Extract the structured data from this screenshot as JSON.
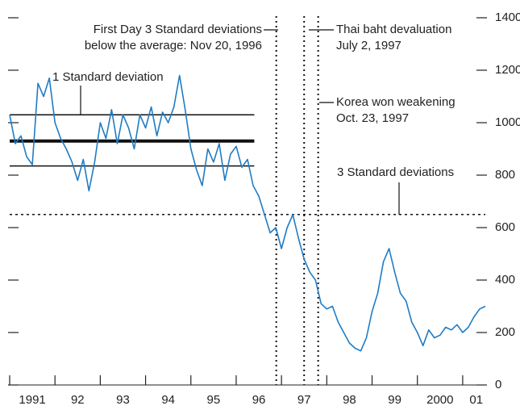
{
  "chart_data": {
    "type": "line",
    "color": "#1f7cc4",
    "xlim": [
      1991,
      2001.5
    ],
    "ylim": [
      0,
      1400
    ],
    "yticks": [
      0,
      200,
      400,
      600,
      800,
      1000,
      1200,
      1400
    ],
    "xtick_marks": [
      1991,
      1992,
      1993,
      1994,
      1995,
      1996,
      1997,
      1998,
      1999,
      2000,
      2001
    ],
    "xticks": [
      {
        "value": 1991.5,
        "label": "1991"
      },
      {
        "value": 1992.5,
        "label": "92"
      },
      {
        "value": 1993.5,
        "label": "93"
      },
      {
        "value": 1994.5,
        "label": "94"
      },
      {
        "value": 1995.5,
        "label": "95"
      },
      {
        "value": 1996.5,
        "label": "96"
      },
      {
        "value": 1997.5,
        "label": "97"
      },
      {
        "value": 1998.5,
        "label": "98"
      },
      {
        "value": 1999.5,
        "label": "99"
      },
      {
        "value": 2000.5,
        "label": "2000"
      },
      {
        "value": 2001.3,
        "label": "01"
      }
    ],
    "series": [
      {
        "x": [
          1991,
          1991.125,
          1991.25,
          1991.375,
          1991.5,
          1991.625,
          1991.75,
          1991.875,
          1992,
          1992.125,
          1992.25,
          1992.375,
          1992.5,
          1992.625,
          1992.75,
          1992.875,
          1993,
          1993.125,
          1993.25,
          1993.375,
          1993.5,
          1993.625,
          1993.75,
          1993.875,
          1994,
          1994.125,
          1994.25,
          1994.375,
          1994.5,
          1994.625,
          1994.75,
          1994.875,
          1995,
          1995.125,
          1995.25,
          1995.375,
          1995.5,
          1995.625,
          1995.75,
          1995.875,
          1996,
          1996.125,
          1996.25,
          1996.375,
          1996.5,
          1996.625,
          1996.75,
          1996.875,
          1997,
          1997.125,
          1997.25,
          1997.375,
          1997.5,
          1997.625,
          1997.75,
          1997.875,
          1998,
          1998.125,
          1998.25,
          1998.375,
          1998.5,
          1998.625,
          1998.75,
          1998.875,
          1999,
          1999.125,
          1999.25,
          1999.375,
          1999.5,
          1999.625,
          1999.75,
          1999.875,
          2000,
          2000.125,
          2000.25,
          2000.375,
          2000.5,
          2000.625,
          2000.75,
          2000.875,
          2001,
          2001.125,
          2001.25,
          2001.375,
          2001.5
        ],
        "values": [
          1030,
          920,
          950,
          870,
          840,
          1150,
          1100,
          1170,
          1000,
          940,
          900,
          850,
          780,
          860,
          740,
          850,
          1000,
          940,
          1050,
          920,
          1030,
          980,
          900,
          1030,
          980,
          1060,
          950,
          1040,
          1000,
          1060,
          1180,
          1050,
          900,
          820,
          760,
          900,
          850,
          920,
          780,
          880,
          910,
          830,
          860,
          760,
          720,
          650,
          580,
          600,
          520,
          600,
          650,
          560,
          480,
          430,
          400,
          310,
          290,
          300,
          240,
          200,
          160,
          140,
          130,
          180,
          280,
          350,
          470,
          520,
          430,
          350,
          320,
          240,
          200,
          150,
          210,
          180,
          190,
          220,
          210,
          230,
          200,
          220,
          260,
          290,
          300
        ]
      }
    ],
    "reference_lines": [
      {
        "value": 1030,
        "xrange": [
          1991,
          1996.4
        ]
      },
      {
        "value": 930,
        "xrange": [
          1991,
          1996.4
        ]
      },
      {
        "value": 835,
        "xrange": [
          1991,
          1996.4
        ]
      },
      {
        "value": 650,
        "xrange": [
          1991,
          2001.5
        ]
      }
    ],
    "event_lines": [
      1996.885,
      1997.5,
      1997.81
    ],
    "annotations": [
      {
        "lines": [
          "First Day 3 Standard deviations",
          "below the average: Nov 20, 1996"
        ]
      },
      {
        "lines": [
          "Thai baht devaluation",
          "July 2, 1997"
        ]
      },
      {
        "lines": [
          "Korea won weakening",
          "Oct. 23, 1997"
        ]
      },
      {
        "lines": [
          "1 Standard deviation"
        ]
      },
      {
        "lines": [
          "3 Standard deviations"
        ]
      }
    ]
  }
}
